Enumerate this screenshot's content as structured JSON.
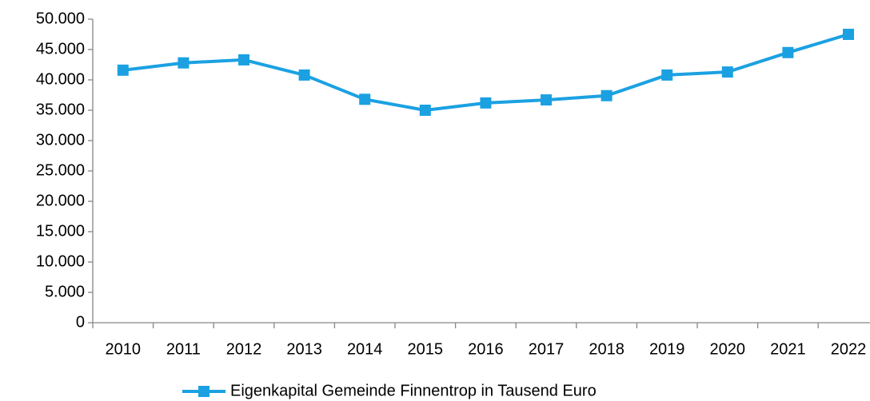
{
  "chart_data": {
    "type": "line",
    "categories": [
      "2010",
      "2011",
      "2012",
      "2013",
      "2014",
      "2015",
      "2016",
      "2017",
      "2018",
      "2019",
      "2020",
      "2021",
      "2022"
    ],
    "series": [
      {
        "name": "Eigenkapital Gemeinde Finnentrop in Tausend Euro",
        "color": "#1ba1e2",
        "values": [
          41600,
          42800,
          43300,
          40800,
          36800,
          35000,
          36200,
          36700,
          37400,
          40800,
          41300,
          44500,
          47500
        ]
      }
    ],
    "ylim": [
      0,
      50000
    ],
    "yticks": [
      0,
      {
        "value": 5000,
        "label": "5.000"
      },
      {
        "value": 10000,
        "label": "10.000"
      },
      {
        "value": 15000,
        "label": "15.000"
      },
      {
        "value": 20000,
        "label": "20.000"
      },
      {
        "value": 25000,
        "label": "25.000"
      },
      {
        "value": 30000,
        "label": "30.000"
      },
      {
        "value": 35000,
        "label": "35.000"
      },
      {
        "value": 40000,
        "label": "40.000"
      },
      {
        "value": 45000,
        "label": "45.000"
      },
      {
        "value": 50000,
        "label": "50.000"
      }
    ],
    "grid": false,
    "legend": "bottom"
  }
}
